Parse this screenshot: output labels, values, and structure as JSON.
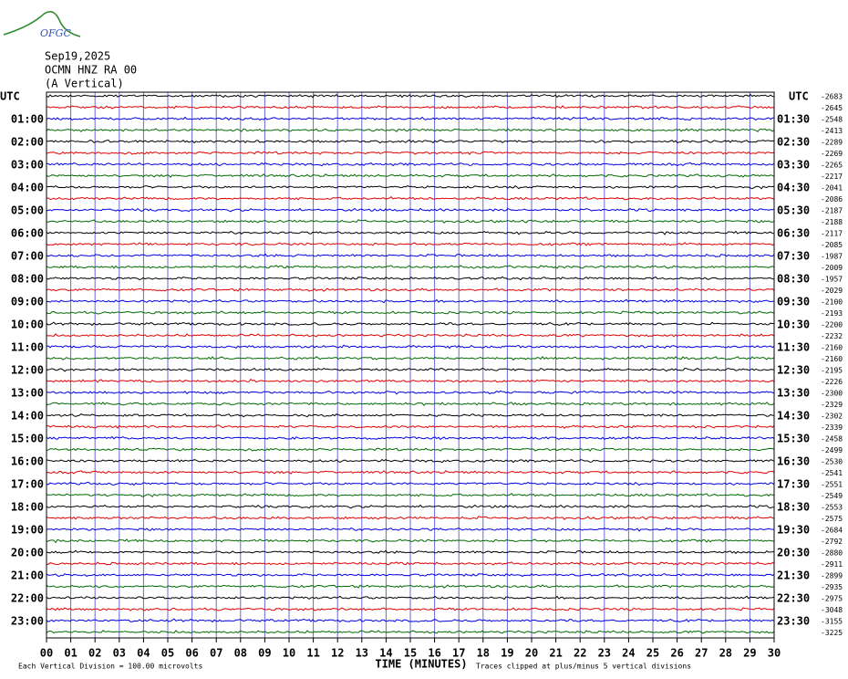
{
  "chart_data": {
    "type": "helicorder",
    "logo": "OFGC",
    "title": "Sep19,2025",
    "subtitle": "OCMN HNZ RA 00",
    "component": "(A Vertical)",
    "left_labels": [
      "UTC",
      null,
      "01:00",
      null,
      "02:00",
      null,
      "03:00",
      null,
      "04:00",
      null,
      "05:00",
      null,
      "06:00",
      null,
      "07:00",
      null,
      "08:00",
      null,
      "09:00",
      null,
      "10:00",
      null,
      "11:00",
      null,
      "12:00",
      null,
      "13:00",
      null,
      "14:00",
      null,
      "15:00",
      null,
      "16:00",
      null,
      "17:00",
      null,
      "18:00",
      null,
      "19:00",
      null,
      "20:00",
      null,
      "21:00",
      null,
      "22:00",
      null,
      "23:00",
      null
    ],
    "right_labels": [
      "UTC",
      null,
      "01:30",
      null,
      "02:30",
      null,
      "03:30",
      null,
      "04:30",
      null,
      "05:30",
      null,
      "06:30",
      null,
      "07:30",
      null,
      "08:30",
      null,
      "09:30",
      null,
      "10:30",
      null,
      "11:30",
      null,
      "12:30",
      null,
      "13:30",
      null,
      "14:30",
      null,
      "15:30",
      null,
      "16:30",
      null,
      "17:30",
      null,
      "18:30",
      null,
      "19:30",
      null,
      "20:30",
      null,
      "21:30",
      null,
      "22:30",
      null,
      "23:30",
      null
    ],
    "offsets": [
      -2683,
      -2645,
      -2548,
      -2413,
      -2289,
      -2269,
      -2265,
      -2217,
      -2041,
      -2086,
      -2187,
      -2188,
      -2117,
      -2085,
      -1987,
      -2009,
      -1957,
      -2029,
      -2100,
      -2193,
      -2200,
      -2232,
      -2160,
      -2160,
      -2195,
      -2226,
      -2300,
      -2329,
      -2302,
      -2339,
      -2458,
      -2499,
      -2530,
      -2541,
      -2551,
      -2549,
      -2553,
      -2575,
      -2684,
      -2792,
      -2880,
      -2911,
      -2899,
      -2935,
      -2975,
      -3048,
      -3155,
      -3225
    ],
    "trace_colors": [
      "#000000",
      "#e00000",
      "#0000e0",
      "#006a00"
    ],
    "xlim": [
      0,
      30
    ],
    "xticks": [
      {
        "value": 0,
        "label": "00"
      },
      {
        "value": 1,
        "label": "01"
      },
      {
        "value": 2,
        "label": "02"
      },
      {
        "value": 3,
        "label": "03"
      },
      {
        "value": 4,
        "label": "04"
      },
      {
        "value": 5,
        "label": "05"
      },
      {
        "value": 6,
        "label": "06"
      },
      {
        "value": 7,
        "label": "07"
      },
      {
        "value": 8,
        "label": "08"
      },
      {
        "value": 9,
        "label": "09"
      },
      10,
      11,
      12,
      13,
      14,
      15,
      16,
      17,
      18,
      19,
      20,
      21,
      22,
      23,
      24,
      25,
      26,
      27,
      28,
      29,
      30
    ],
    "xlabel": "TIME (MINUTES)",
    "scale_note": "Each Vertical Division =  100.00 microvolts",
    "clip_note": "Traces clipped at plus/minus 5 vertical divisions",
    "grid": true,
    "grid_color": "#6a6ad8"
  }
}
